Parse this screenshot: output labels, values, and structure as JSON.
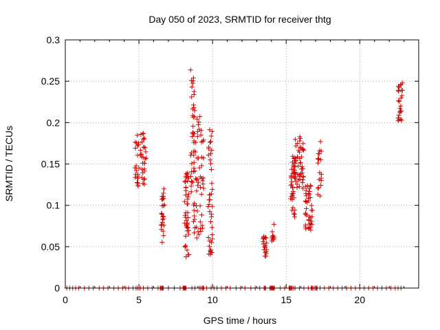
{
  "chart_data": {
    "type": "scatter",
    "title": "Day 050 of 2023, SRMTID for receiver thtg",
    "xlabel": "GPS time / hours",
    "ylabel": "SRMTID / TECUs",
    "xlim": [
      0,
      24
    ],
    "ylim": [
      0,
      0.3
    ],
    "xticks": [
      0,
      5,
      10,
      15,
      20
    ],
    "xtick_labels": [
      "0",
      "5",
      "10",
      "15",
      "20"
    ],
    "yticks": [
      0,
      0.05,
      0.1,
      0.15,
      0.2,
      0.25,
      0.3
    ],
    "ytick_labels": [
      "0",
      "0.05",
      "0.1",
      "0.15",
      "0.2",
      "0.25",
      "0.3"
    ],
    "grid": true,
    "marker": "+",
    "color": "#d40000",
    "clusters": [
      {
        "x_range": [
          4.7,
          5.0
        ],
        "y_range": [
          0.11,
          0.185
        ],
        "points": 22
      },
      {
        "x_range": [
          5.1,
          5.5
        ],
        "y_range": [
          0.125,
          0.19
        ],
        "points": 30
      },
      {
        "x_range": [
          6.5,
          6.75
        ],
        "y_range": [
          0.055,
          0.12
        ],
        "points": 25
      },
      {
        "x_range": [
          8.1,
          8.4
        ],
        "y_range": [
          0.037,
          0.14
        ],
        "points": 45
      },
      {
        "x_range": [
          8.5,
          8.8
        ],
        "y_range": [
          0.11,
          0.265
        ],
        "points": 35
      },
      {
        "x_range": [
          8.7,
          9.4
        ],
        "y_range": [
          0.06,
          0.21
        ],
        "points": 60
      },
      {
        "x_range": [
          9.7,
          10.0
        ],
        "y_range": [
          0.04,
          0.195
        ],
        "points": 40
      },
      {
        "x_range": [
          13.4,
          13.7
        ],
        "y_range": [
          0.038,
          0.065
        ],
        "points": 20
      },
      {
        "x_range": [
          14.0,
          14.2
        ],
        "y_range": [
          0.053,
          0.077
        ],
        "points": 10
      },
      {
        "x_range": [
          15.3,
          15.6
        ],
        "y_range": [
          0.085,
          0.16
        ],
        "points": 40
      },
      {
        "x_range": [
          15.6,
          16.2
        ],
        "y_range": [
          0.12,
          0.185
        ],
        "points": 45
      },
      {
        "x_range": [
          16.3,
          16.8
        ],
        "y_range": [
          0.07,
          0.13
        ],
        "points": 40
      },
      {
        "x_range": [
          17.1,
          17.4
        ],
        "y_range": [
          0.11,
          0.18
        ],
        "points": 20
      },
      {
        "x_range": [
          22.6,
          22.9
        ],
        "y_range": [
          0.2,
          0.25
        ],
        "points": 25
      }
    ],
    "zero_points_x": [
      0.1,
      0.3,
      0.5,
      0.7,
      0.9,
      1.3,
      1.6,
      1.9,
      2.3,
      2.6,
      2.9,
      3.3,
      3.6,
      3.9,
      4.1,
      4.3,
      4.6,
      4.8,
      4.9,
      5.0,
      5.1,
      5.3,
      5.6,
      5.9,
      6.3,
      6.45,
      6.5,
      6.55,
      6.6,
      6.65,
      7.0,
      7.4,
      7.8,
      8.0,
      8.05,
      8.1,
      8.15,
      8.2,
      8.6,
      8.8,
      9.1,
      9.2,
      9.3,
      9.35,
      9.4,
      9.6,
      9.9,
      10.1,
      10.3,
      10.6,
      10.9,
      11.2,
      11.6,
      11.9,
      12.2,
      12.6,
      12.9,
      13.2,
      13.5,
      13.55,
      13.6,
      13.9,
      13.95,
      14.0,
      14.05,
      14.1,
      14.15,
      14.2,
      14.6,
      14.9,
      15.2,
      15.25,
      15.3,
      15.35,
      15.4,
      15.5,
      15.6,
      15.9,
      16.2,
      16.5,
      16.7,
      16.75,
      16.8,
      16.9,
      17.0,
      17.05,
      17.1,
      17.3,
      17.6,
      17.9,
      18.2,
      18.5,
      18.8,
      19.1,
      19.4,
      19.7,
      20.0,
      20.3,
      20.6,
      20.9,
      21.2,
      21.5,
      21.8,
      22.1,
      22.4,
      22.6,
      22.8
    ]
  }
}
